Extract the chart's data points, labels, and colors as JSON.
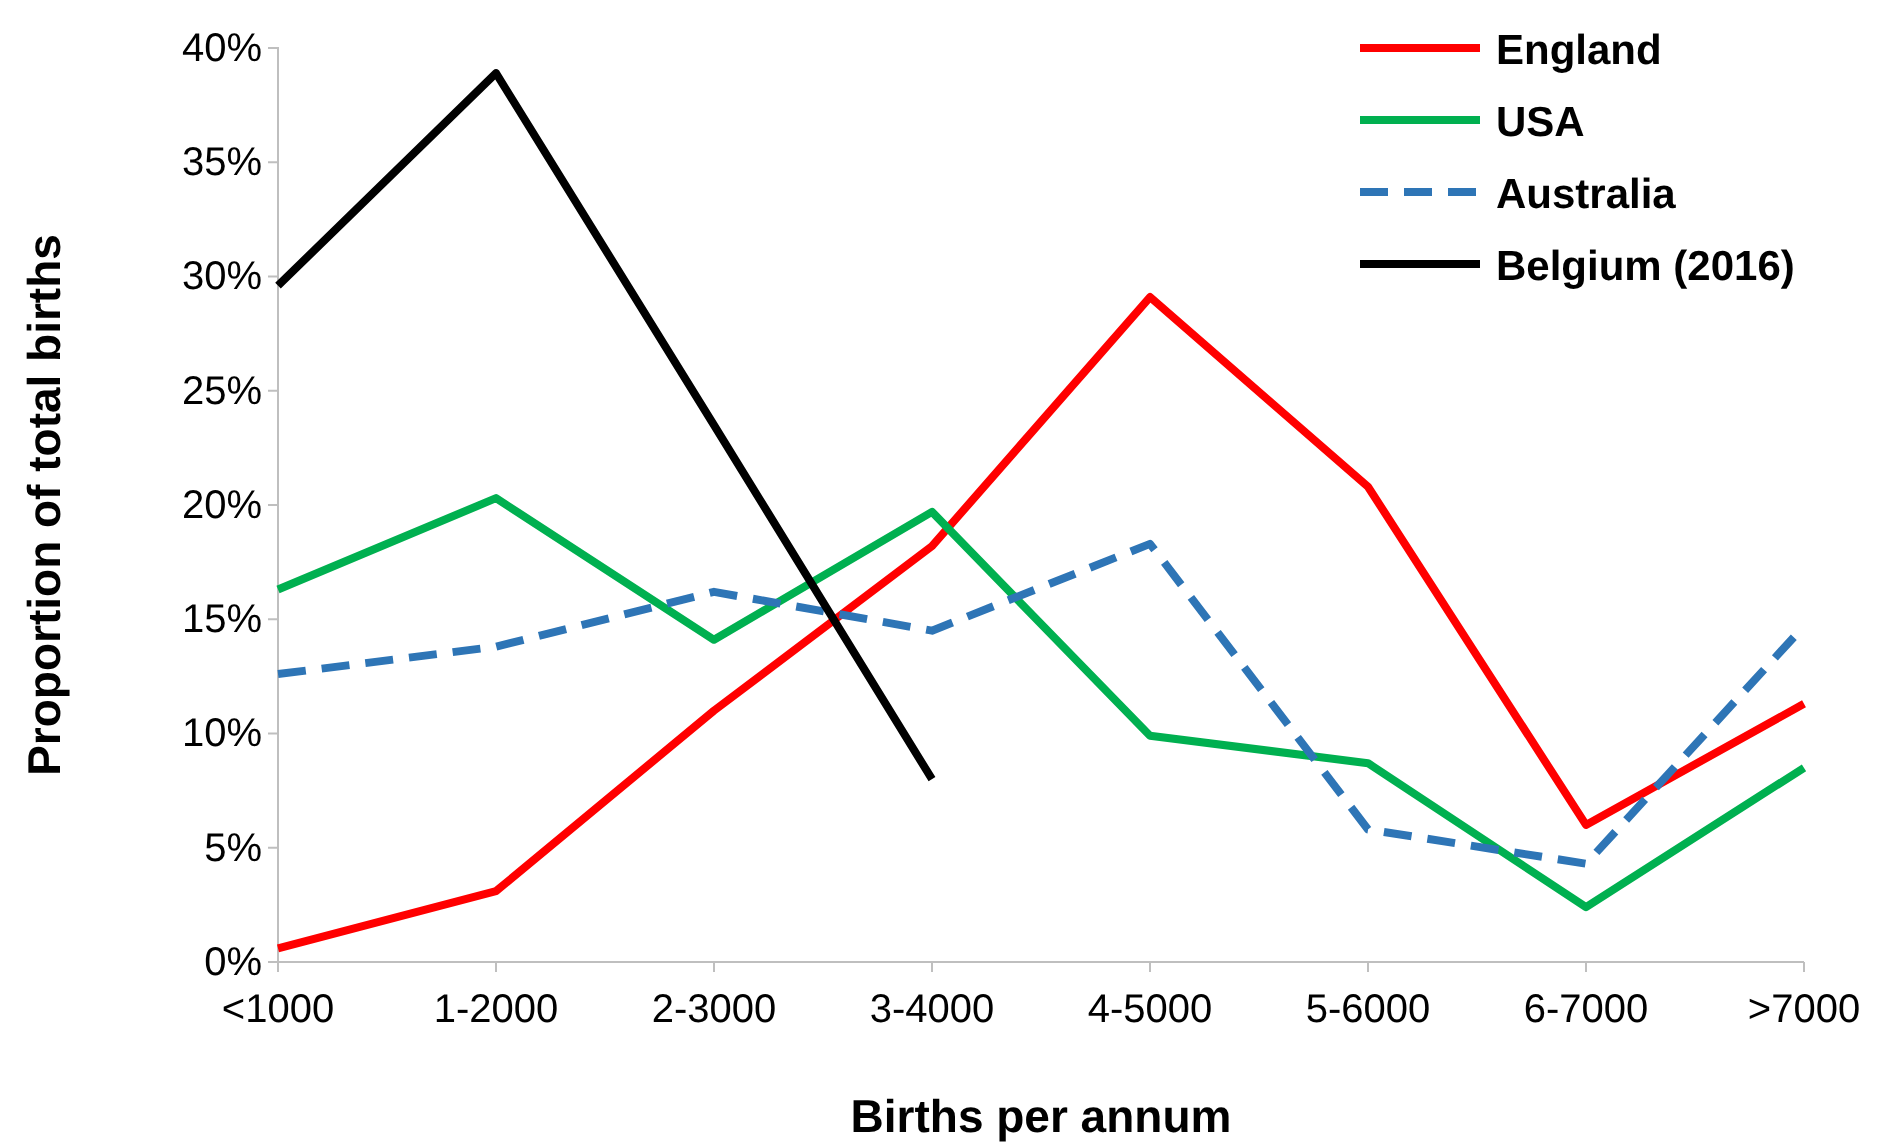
{
  "chart_data": {
    "type": "line",
    "xlabel": "Births per annum",
    "ylabel": "Proportion of total births",
    "categories": [
      "<1000",
      "1-2000",
      "2-3000",
      "3-4000",
      "4-5000",
      "5-6000",
      "6-7000",
      ">7000"
    ],
    "series": [
      {
        "name": "England",
        "color": "#ff0000",
        "line_style": "solid",
        "values": [
          0.6,
          3.1,
          11,
          18.2,
          29.1,
          20.8,
          6.0,
          11.3
        ]
      },
      {
        "name": "USA",
        "color": "#00b050",
        "line_style": "solid",
        "values": [
          16.3,
          20.3,
          14.1,
          19.7,
          9.9,
          8.7,
          2.4,
          8.5
        ]
      },
      {
        "name": "Australia",
        "color": "#2e75b6",
        "line_style": "dashed",
        "values": [
          12.6,
          13.8,
          16.2,
          14.5,
          18.3,
          5.8,
          4.3,
          14.7
        ]
      },
      {
        "name": "Belgium (2016)",
        "color": "#000000",
        "line_style": "solid",
        "values": [
          29.6,
          38.9,
          23.5,
          8.0,
          null,
          null,
          null,
          null
        ]
      }
    ],
    "ylim": [
      0,
      40
    ],
    "yticks": [
      {
        "value": 0,
        "label": "0%"
      },
      {
        "value": 5,
        "label": "5%"
      },
      {
        "value": 10,
        "label": "10%"
      },
      {
        "value": 15,
        "label": "15%"
      },
      {
        "value": 20,
        "label": "20%"
      },
      {
        "value": 25,
        "label": "25%"
      },
      {
        "value": 30,
        "label": "30%"
      },
      {
        "value": 35,
        "label": "35%"
      },
      {
        "value": 40,
        "label": "40%"
      }
    ],
    "grid": false,
    "legend": "top right",
    "marker": "none"
  }
}
